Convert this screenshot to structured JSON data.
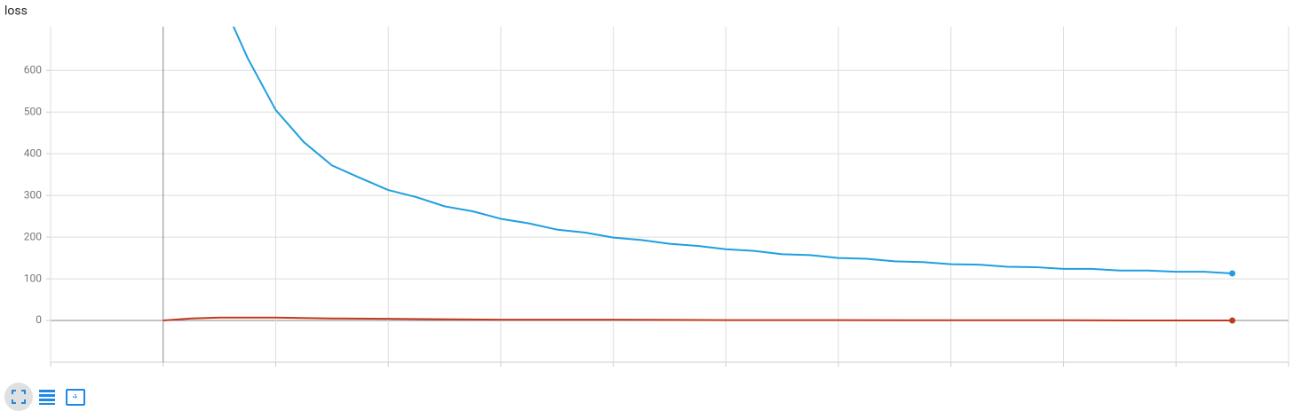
{
  "chart_data": {
    "type": "line",
    "title": "loss",
    "xlim": [
      -1,
      10
    ],
    "xticks": [
      -1,
      0,
      1,
      2,
      3,
      4,
      5,
      6,
      7,
      8,
      9,
      10
    ],
    "ylim": [
      -100,
      705
    ],
    "yticks": [
      0,
      100,
      200,
      300,
      400,
      500,
      600
    ],
    "grid": true,
    "series": [
      {
        "color": "#1f9fe0",
        "x": [
          0.5,
          0.75,
          1.0,
          1.25,
          1.5,
          1.75,
          2.0,
          2.25,
          2.5,
          2.75,
          3.0,
          3.25,
          3.5,
          3.75,
          4.0,
          4.25,
          4.5,
          4.75,
          5.0,
          5.25,
          5.5,
          5.75,
          6.0,
          6.25,
          6.5,
          6.75,
          7.0,
          7.25,
          7.5,
          7.75,
          8.0,
          8.25,
          8.5,
          8.75,
          9.0,
          9.25,
          9.5
        ],
        "values": [
          780,
          630,
          505,
          428,
          372,
          342,
          313,
          296,
          274,
          262,
          244,
          233,
          218,
          211,
          199,
          193,
          184,
          179,
          171,
          167,
          159,
          157,
          150,
          148,
          142,
          140,
          135,
          134,
          129,
          128,
          124,
          124,
          120,
          120,
          117,
          117,
          113
        ]
      },
      {
        "color": "#c23a1e",
        "x": [
          0,
          0.25,
          0.5,
          1.0,
          1.5,
          2.0,
          3.0,
          4.0,
          5.0,
          6.0,
          7.0,
          8.0,
          9.0,
          9.5
        ],
        "values": [
          0,
          5,
          7,
          7,
          5,
          4,
          2,
          2,
          1,
          1,
          0.5,
          0.5,
          0,
          0
        ]
      }
    ]
  }
}
